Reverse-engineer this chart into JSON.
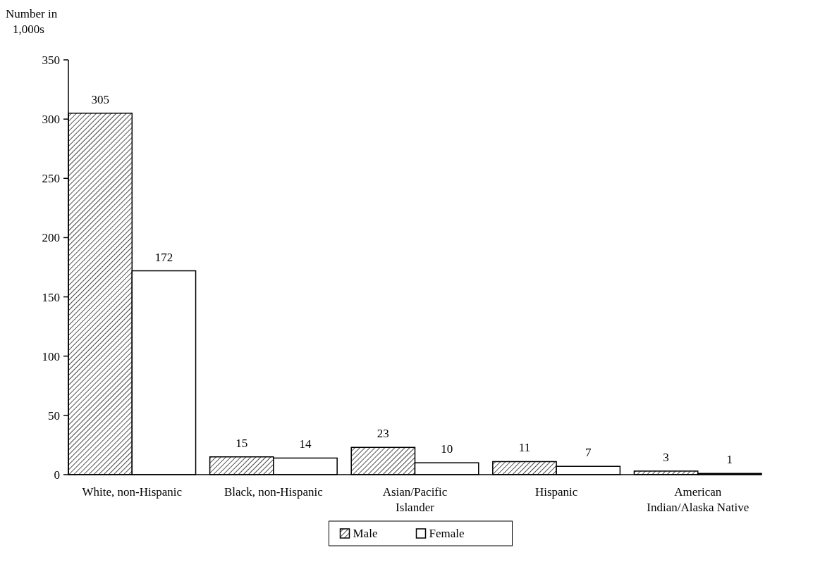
{
  "chart_data": {
    "type": "bar",
    "ylabel": "Number in 1,000s",
    "categories": [
      "White, non-Hispanic",
      "Black, non-Hispanic",
      "Asian/Pacific Islander",
      "Hispanic",
      "American Indian/Alaska Native"
    ],
    "series": [
      {
        "name": "Male",
        "color": "#000000",
        "values": [
          305,
          15,
          23,
          11,
          3
        ]
      },
      {
        "name": "Female",
        "color": "#ffffff",
        "values": [
          172,
          14,
          10,
          7,
          1
        ]
      }
    ],
    "ylim": [
      0,
      350
    ],
    "yticks": [
      0,
      50,
      100,
      150,
      200,
      250,
      300,
      350
    ],
    "grid": false,
    "legend": "bottom",
    "data_labels": true
  }
}
